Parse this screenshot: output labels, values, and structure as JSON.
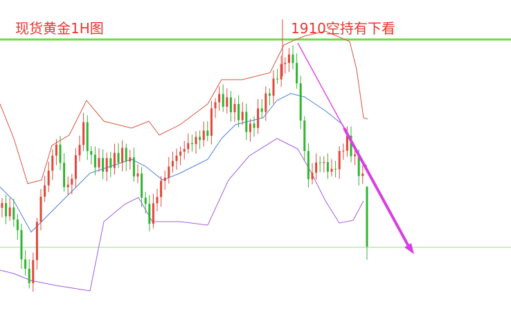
{
  "header": {
    "title": "现货黄金1H图",
    "note": "1910空持有下看"
  }
}
